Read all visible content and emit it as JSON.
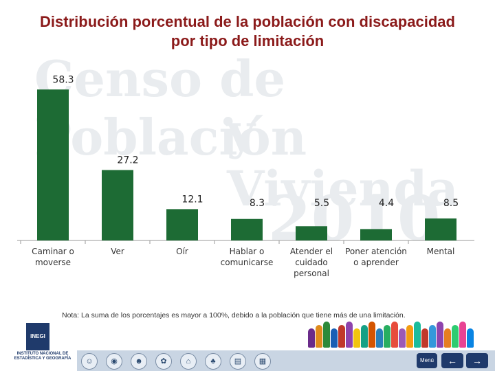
{
  "title_line1": "Distribución porcentual de la población con discapacidad",
  "title_line2": "por tipo de limitación",
  "watermark": {
    "line1": "Censo de Población",
    "line2": "y Vivienda",
    "line3": "2010"
  },
  "chart_data": {
    "type": "bar",
    "title": "Distribución porcentual de la población con discapacidad por tipo de limitación",
    "categories": [
      "Caminar o\nmoverse",
      "Ver",
      "Oír",
      "Hablar o\ncomunicarse",
      "Atender el\ncuidado\npersonal",
      "Poner atención\no aprender",
      "Mental"
    ],
    "values": [
      58.3,
      27.2,
      12.1,
      8.3,
      5.5,
      4.4,
      8.5
    ],
    "value_labels": [
      "58.3",
      "27.2",
      "12.1",
      "8.3",
      "5.5",
      "4.4",
      "8.5"
    ],
    "bar_color": "#1d6b34",
    "ylim": [
      0,
      65
    ],
    "grid": false,
    "legend": "none"
  },
  "note": "Nota: La suma de los porcentajes es mayor a 100%, debido a la población que tiene más de una limitación.",
  "footer": {
    "logo_text": "INEGI",
    "institute": "INSTITUTO NACIONAL DE ESTADÍSTICA Y GEOGRAFÍA",
    "menu_label": "Menú",
    "prev_icon": "arrow-left-icon",
    "next_icon": "arrow-right-icon",
    "nav_icons": [
      "person-icon",
      "globe-icon",
      "people-icon",
      "map-icon",
      "house-icon",
      "tree-icon",
      "chart-icon",
      "book-icon"
    ]
  }
}
